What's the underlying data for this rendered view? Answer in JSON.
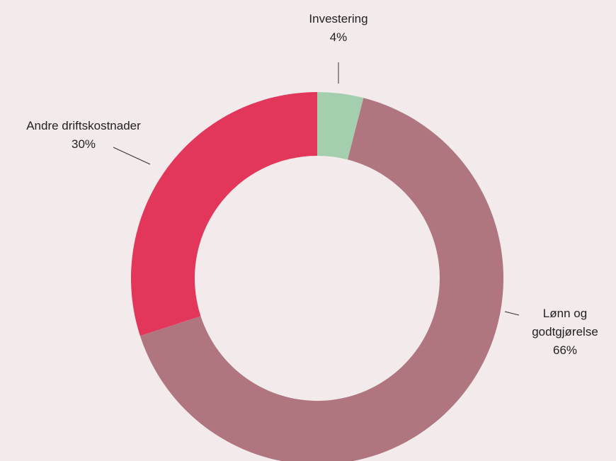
{
  "chart_data": {
    "type": "donut",
    "categories": [
      "Investering",
      "Lønn og godtgjørelse",
      "Andre driftskostnader"
    ],
    "values": [
      4,
      66,
      30
    ],
    "value_labels": [
      "4%",
      "66%",
      "30%"
    ],
    "colors": [
      "#a3cfae",
      "#b07680",
      "#e2375a"
    ]
  }
}
